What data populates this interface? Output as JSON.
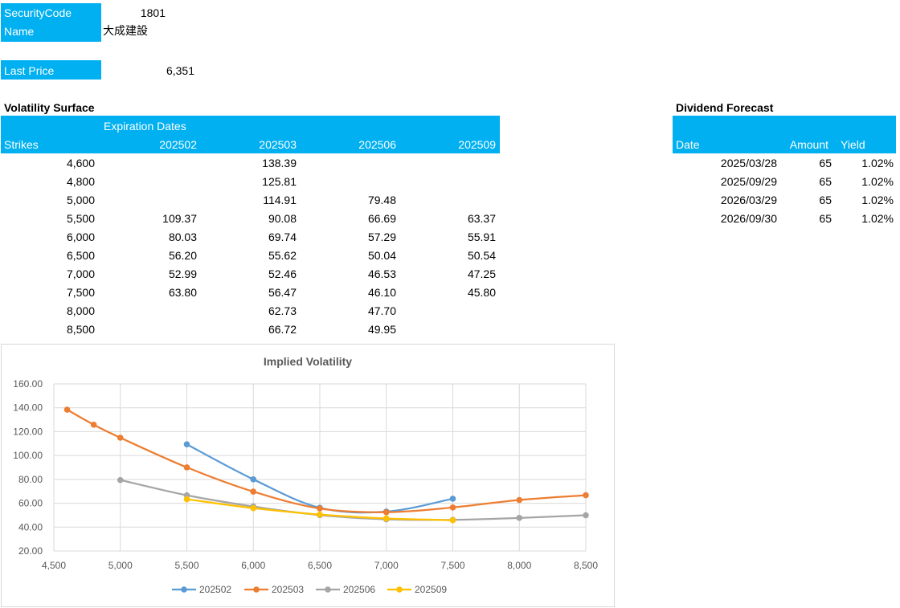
{
  "security": {
    "code_label": "SecurityCode",
    "code_value": "1801",
    "name_label": "Name",
    "name_value": "大成建設",
    "last_price_label": "Last Price",
    "last_price_value": "6,351"
  },
  "vol_surface": {
    "title": "Volatility Surface",
    "expiration_label": "Expiration Dates",
    "strikes_label": "Strikes",
    "expirations": [
      "202502",
      "202503",
      "202506",
      "202509"
    ],
    "rows": [
      {
        "strike": "4,600",
        "values": [
          "",
          "138.39",
          "",
          ""
        ]
      },
      {
        "strike": "4,800",
        "values": [
          "",
          "125.81",
          "",
          ""
        ]
      },
      {
        "strike": "5,000",
        "values": [
          "",
          "114.91",
          "79.48",
          ""
        ]
      },
      {
        "strike": "5,500",
        "values": [
          "109.37",
          "90.08",
          "66.69",
          "63.37"
        ]
      },
      {
        "strike": "6,000",
        "values": [
          "80.03",
          "69.74",
          "57.29",
          "55.91"
        ]
      },
      {
        "strike": "6,500",
        "values": [
          "56.20",
          "55.62",
          "50.04",
          "50.54"
        ]
      },
      {
        "strike": "7,000",
        "values": [
          "52.99",
          "52.46",
          "46.53",
          "47.25"
        ]
      },
      {
        "strike": "7,500",
        "values": [
          "63.80",
          "56.47",
          "46.10",
          "45.80"
        ]
      },
      {
        "strike": "8,000",
        "values": [
          "",
          "62.73",
          "47.70",
          ""
        ]
      },
      {
        "strike": "8,500",
        "values": [
          "",
          "66.72",
          "49.95",
          ""
        ]
      }
    ]
  },
  "dividend": {
    "title": "Dividend Forecast",
    "date_label": "Date",
    "amount_label": "Amount",
    "yield_label": "Yield",
    "rows": [
      {
        "date": "2025/03/28",
        "amount": "65",
        "yield": "1.02%"
      },
      {
        "date": "2025/09/29",
        "amount": "65",
        "yield": "1.02%"
      },
      {
        "date": "2026/03/29",
        "amount": "65",
        "yield": "1.02%"
      },
      {
        "date": "2026/09/30",
        "amount": "65",
        "yield": "1.02%"
      }
    ]
  },
  "chart_data": {
    "type": "line",
    "title": "Implied Volatility",
    "xlabel": "",
    "ylabel": "",
    "xlim": [
      4500,
      8500
    ],
    "ylim": [
      20,
      160
    ],
    "x_ticks": [
      4500,
      5000,
      5500,
      6000,
      6500,
      7000,
      7500,
      8000,
      8500
    ],
    "x_tick_labels": [
      "4,500",
      "5,000",
      "5,500",
      "6,000",
      "6,500",
      "7,000",
      "7,500",
      "8,000",
      "8,500"
    ],
    "y_ticks": [
      20,
      40,
      60,
      80,
      100,
      120,
      140,
      160
    ],
    "y_tick_labels": [
      "20.00",
      "40.00",
      "60.00",
      "80.00",
      "100.00",
      "120.00",
      "140.00",
      "160.00"
    ],
    "grid": true,
    "legend": "bottom",
    "series": [
      {
        "name": "202502",
        "color": "#5b9bd5",
        "points": [
          [
            5500,
            109.37
          ],
          [
            6000,
            80.03
          ],
          [
            6500,
            56.2
          ],
          [
            7000,
            52.99
          ],
          [
            7500,
            63.8
          ]
        ]
      },
      {
        "name": "202503",
        "color": "#ed7d31",
        "points": [
          [
            4600,
            138.39
          ],
          [
            4800,
            125.81
          ],
          [
            5000,
            114.91
          ],
          [
            5500,
            90.08
          ],
          [
            6000,
            69.74
          ],
          [
            6500,
            55.62
          ],
          [
            7000,
            52.46
          ],
          [
            7500,
            56.47
          ],
          [
            8000,
            62.73
          ],
          [
            8500,
            66.72
          ]
        ]
      },
      {
        "name": "202506",
        "color": "#a5a5a5",
        "points": [
          [
            5000,
            79.48
          ],
          [
            5500,
            66.69
          ],
          [
            6000,
            57.29
          ],
          [
            6500,
            50.04
          ],
          [
            7000,
            46.53
          ],
          [
            7500,
            46.1
          ],
          [
            8000,
            47.7
          ],
          [
            8500,
            49.95
          ]
        ]
      },
      {
        "name": "202509",
        "color": "#ffc000",
        "points": [
          [
            5500,
            63.37
          ],
          [
            6000,
            55.91
          ],
          [
            6500,
            50.54
          ],
          [
            7000,
            47.25
          ],
          [
            7500,
            45.8
          ]
        ]
      }
    ]
  }
}
